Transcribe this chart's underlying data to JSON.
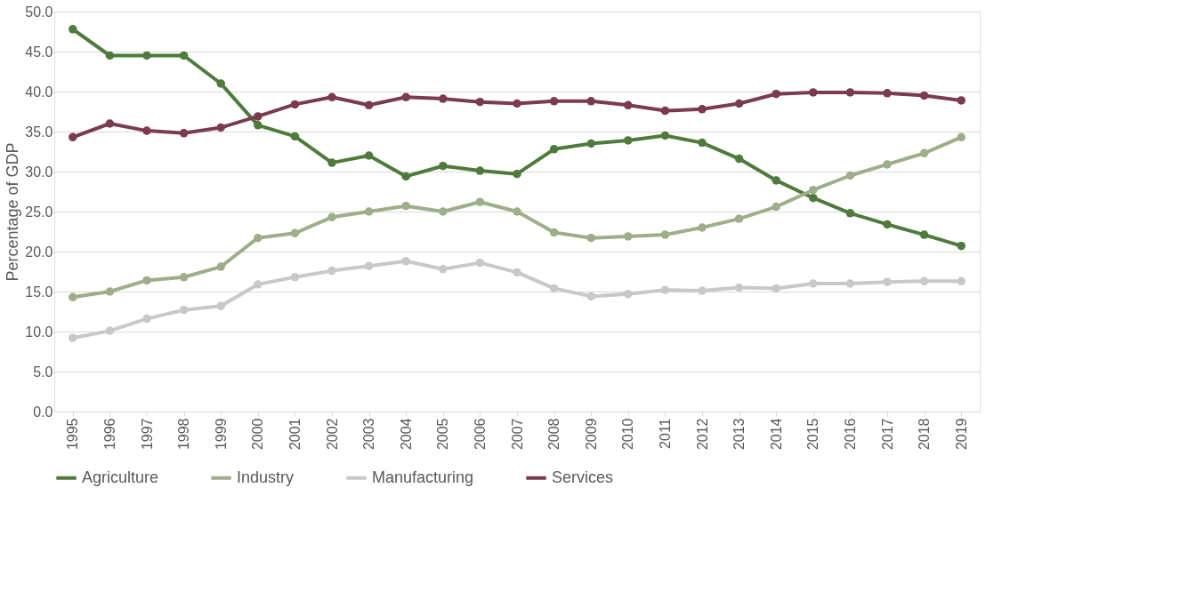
{
  "chart_data": {
    "type": "line",
    "ylabel": "Percentage of GDP",
    "categories": [
      "1995",
      "1996",
      "1997",
      "1998",
      "1999",
      "2000",
      "2001",
      "2002",
      "2003",
      "2004",
      "2005",
      "2006",
      "2007",
      "2008",
      "2009",
      "2010",
      "2011",
      "2012",
      "2013",
      "2014",
      "2015",
      "2016",
      "2017",
      "2018",
      "2019"
    ],
    "series": [
      {
        "name": "Agriculture",
        "color": "#4e7a3c",
        "values": [
          47.8,
          44.5,
          44.5,
          44.5,
          41.0,
          35.8,
          34.4,
          31.1,
          32.0,
          29.4,
          30.7,
          30.1,
          29.7,
          32.8,
          33.5,
          33.9,
          34.5,
          33.6,
          31.6,
          28.9,
          26.7,
          24.8,
          23.4,
          22.1,
          20.7
        ]
      },
      {
        "name": "Industry",
        "color": "#9caf88",
        "values": [
          14.3,
          15.0,
          16.4,
          16.8,
          18.1,
          21.7,
          22.3,
          24.3,
          25.0,
          25.7,
          25.0,
          26.2,
          25.0,
          22.4,
          21.7,
          21.9,
          22.1,
          23.0,
          24.1,
          25.6,
          27.7,
          29.5,
          30.9,
          32.3,
          34.3
        ]
      },
      {
        "name": "Manufacturing",
        "color": "#c8c8c8",
        "values": [
          9.2,
          10.1,
          11.6,
          12.7,
          13.2,
          15.9,
          16.8,
          17.6,
          18.2,
          18.8,
          17.8,
          18.6,
          17.4,
          15.4,
          14.4,
          14.7,
          15.2,
          15.1,
          15.5,
          15.4,
          16.0,
          16.0,
          16.2,
          16.3,
          16.3
        ]
      },
      {
        "name": "Services",
        "color": "#7a3b4f",
        "values": [
          34.3,
          36.0,
          35.1,
          34.8,
          35.5,
          36.9,
          38.4,
          39.3,
          38.3,
          39.3,
          39.1,
          38.7,
          38.5,
          38.8,
          38.8,
          38.3,
          37.6,
          37.8,
          38.5,
          39.7,
          39.9,
          39.9,
          39.8,
          39.5,
          38.9
        ]
      }
    ],
    "ylim": [
      0,
      50
    ],
    "yticks": [
      {
        "value": 0,
        "label": "0.0"
      },
      {
        "value": 5,
        "label": "5.0"
      },
      {
        "value": 10,
        "label": "10.0"
      },
      {
        "value": 15,
        "label": "15.0"
      },
      {
        "value": 20,
        "label": "20.0"
      },
      {
        "value": 25,
        "label": "25.0"
      },
      {
        "value": 30,
        "label": "30.0"
      },
      {
        "value": 35,
        "label": "35.0"
      },
      {
        "value": 40,
        "label": "40.0"
      },
      {
        "value": 45,
        "label": "45.0"
      },
      {
        "value": 50,
        "label": "50.0"
      }
    ],
    "grid": "y",
    "legend": "bottom",
    "marker": "circle",
    "line_style": "solid"
  }
}
